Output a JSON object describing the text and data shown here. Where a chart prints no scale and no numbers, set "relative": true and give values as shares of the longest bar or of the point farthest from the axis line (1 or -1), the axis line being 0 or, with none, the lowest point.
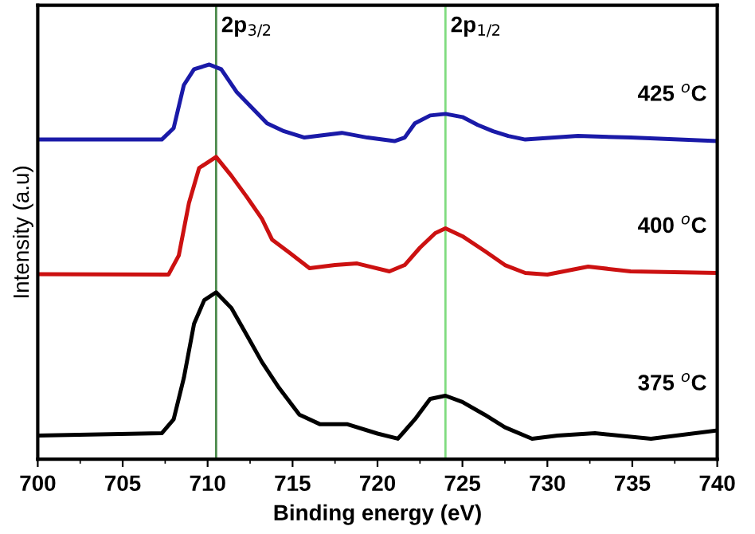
{
  "chart_data": {
    "type": "line",
    "relative": true,
    "xlabel": "Binding energy (eV)",
    "ylabel": "Intensity (a.u)",
    "xlim": [
      700,
      740
    ],
    "xticks": [
      700,
      705,
      710,
      715,
      720,
      725,
      730,
      735,
      740
    ],
    "grid": false,
    "marker": "none",
    "line_style": "solid",
    "ref_lines": [
      {
        "axis": "x",
        "value": 710.5,
        "label": "2p$_{3/2}$",
        "color": "#4c8a4c"
      },
      {
        "axis": "x",
        "value": 724,
        "label": "2p$_{1/2}$",
        "color": "#80dc80"
      }
    ],
    "series": [
      {
        "name": "425 $^{o}$C",
        "color": "#1a1aa8",
        "x": [
          700,
          707.3,
          708,
          708.6,
          709.2,
          710.1,
          710.8,
          711.7,
          712.6,
          713.5,
          714.5,
          715.7,
          717.9,
          719.4,
          721,
          721.6,
          722.2,
          723.1,
          724,
          725,
          725.9,
          726.8,
          727.7,
          728.7,
          731.8,
          734.9,
          740
        ],
        "values": [
          0.81,
          0.81,
          0.839,
          0.948,
          0.988,
          1.0,
          0.988,
          0.931,
          0.891,
          0.851,
          0.831,
          0.815,
          0.827,
          0.815,
          0.806,
          0.815,
          0.851,
          0.871,
          0.875,
          0.867,
          0.847,
          0.831,
          0.819,
          0.81,
          0.819,
          0.815,
          0.806
        ]
      },
      {
        "name": "400 $^{o}$C",
        "color": "#cc1111",
        "x": [
          700,
          707.7,
          708.3,
          708.9,
          709.5,
          710.5,
          711.4,
          712.3,
          713.2,
          713.8,
          714.8,
          716,
          717.5,
          718.8,
          720.7,
          721.6,
          722.5,
          723.4,
          724,
          725,
          726.3,
          727.5,
          728.7,
          730,
          732.4,
          734.9,
          740
        ],
        "values": [
          0.469,
          0.468,
          0.516,
          0.649,
          0.738,
          0.766,
          0.718,
          0.665,
          0.609,
          0.556,
          0.524,
          0.484,
          0.492,
          0.496,
          0.476,
          0.492,
          0.536,
          0.573,
          0.585,
          0.565,
          0.528,
          0.492,
          0.472,
          0.468,
          0.488,
          0.476,
          0.472
        ]
      },
      {
        "name": "375 $^{o}$C",
        "color": "#000000",
        "x": [
          700,
          707.3,
          708,
          708.6,
          709.2,
          709.8,
          710.5,
          711.4,
          712.3,
          713.2,
          714.2,
          715.4,
          716.6,
          718.2,
          720,
          721.2,
          722.2,
          723.1,
          724,
          725,
          726.3,
          727.5,
          729.1,
          730.6,
          732.8,
          736.1,
          740
        ],
        "values": [
          0.06,
          0.066,
          0.101,
          0.206,
          0.343,
          0.403,
          0.423,
          0.383,
          0.315,
          0.246,
          0.181,
          0.113,
          0.089,
          0.089,
          0.065,
          0.052,
          0.101,
          0.153,
          0.161,
          0.145,
          0.113,
          0.081,
          0.052,
          0.06,
          0.066,
          0.052,
          0.073
        ]
      }
    ]
  }
}
